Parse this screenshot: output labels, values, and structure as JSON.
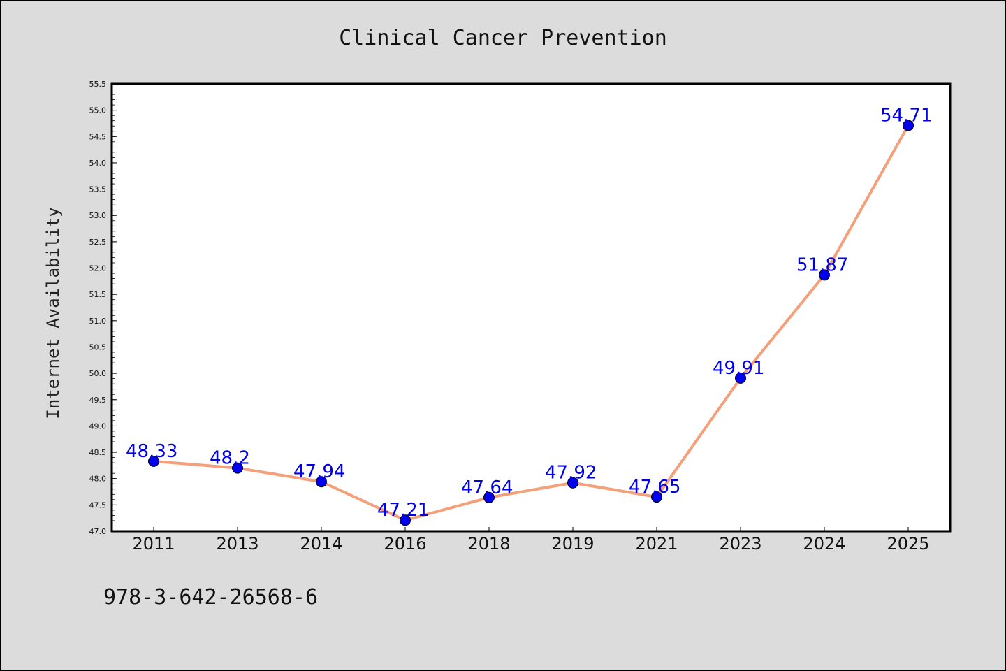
{
  "chart_data": {
    "type": "line",
    "title": "Clinical Cancer Prevention",
    "ylabel": "Internet Availability",
    "xlabel": "",
    "categories": [
      "2011",
      "2013",
      "2014",
      "2016",
      "2018",
      "2019",
      "2021",
      "2023",
      "2024",
      "2025"
    ],
    "values": [
      48.33,
      48.2,
      47.94,
      47.21,
      47.64,
      47.92,
      47.65,
      49.91,
      51.87,
      54.71
    ],
    "data_labels": [
      "48.33",
      "48.2",
      "47.94",
      "47.21",
      "47.64",
      "47.92",
      "47.65",
      "49.91",
      "51.87",
      "54.71"
    ],
    "ylim": [
      47.0,
      55.5
    ],
    "yticks": [
      "47.0",
      "47.5",
      "48.0",
      "48.5",
      "49.0",
      "49.5",
      "50.0",
      "50.5",
      "51.0",
      "51.5",
      "52.0",
      "52.5",
      "53.0",
      "53.5",
      "54.0",
      "54.5",
      "55.0",
      "55.5"
    ],
    "grid": false,
    "legend": "none",
    "line_color": "#f4a07a",
    "marker_color": "#0000ee",
    "label_color": "#0000ee"
  },
  "annotation": "978-3-642-26568-6"
}
